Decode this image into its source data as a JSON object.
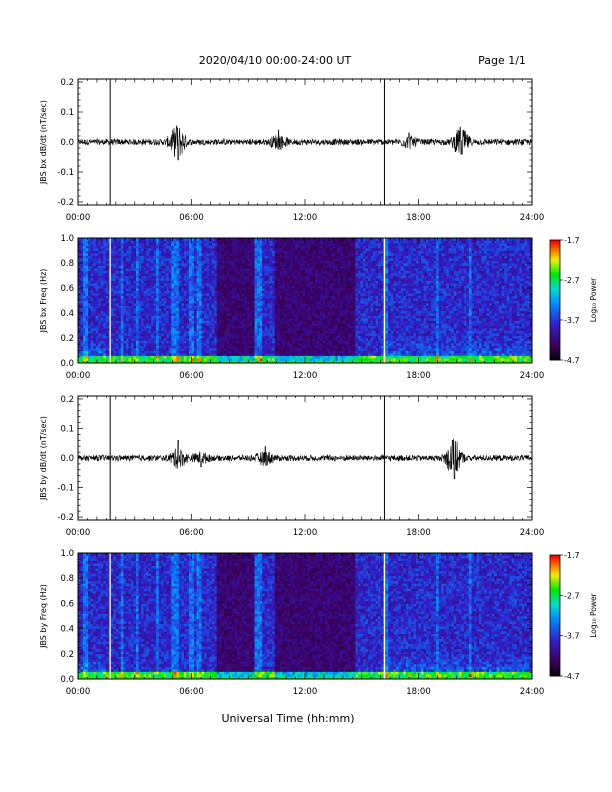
{
  "header": {
    "title": "2020/04/10  00:00-24:00 UT",
    "page": "Page 1/1"
  },
  "xlabel": "Universal Time (hh:mm)",
  "chart_data": [
    {
      "type": "line",
      "ylabel": "JBS bx dB/dt (nT/sec)",
      "xlim": [
        0,
        24
      ],
      "ylim": [
        -0.21,
        0.21
      ],
      "yticks": [
        "-0.2",
        "-0.1",
        "0.0",
        "0.1",
        "0.2"
      ],
      "xticks": [
        "00:00",
        "06:00",
        "12:00",
        "18:00",
        "24:00"
      ],
      "baseline": 0.0,
      "markers_hours": [
        1.7,
        16.2
      ],
      "bursts": [
        {
          "hour": 5.2,
          "peak": 0.05
        },
        {
          "hour": 5.3,
          "peak": -0.06
        },
        {
          "hour": 10.6,
          "peak": 0.04
        },
        {
          "hour": 17.5,
          "peak": 0.03
        },
        {
          "hour": 20.2,
          "peak": 0.05
        },
        {
          "hour": 20.3,
          "peak": -0.04
        }
      ]
    },
    {
      "type": "heatmap",
      "ylabel": "JBS bx Freq (Hz)",
      "xlim": [
        0,
        24
      ],
      "ylim": [
        0,
        1.0
      ],
      "yticks": [
        "0.0",
        "0.2",
        "0.4",
        "0.6",
        "0.8",
        "1.0"
      ],
      "xticks": [
        "00:00",
        "06:00",
        "12:00",
        "18:00",
        "24:00"
      ],
      "colorbar": {
        "label": "Log₁₀ Power",
        "ticks": [
          "-1.7",
          "-2.7",
          "-3.7",
          "-4.7"
        ],
        "range": [
          -4.7,
          -1.7
        ]
      },
      "gap_lines_hours": [
        1.7,
        16.2
      ]
    },
    {
      "type": "line",
      "ylabel": "JBS by dB/dt (nT/sec)",
      "xlim": [
        0,
        24
      ],
      "ylim": [
        -0.21,
        0.21
      ],
      "yticks": [
        "-0.2",
        "-0.1",
        "0.0",
        "0.1",
        "0.2"
      ],
      "xticks": [
        "00:00",
        "06:00",
        "12:00",
        "18:00",
        "24:00"
      ],
      "baseline": 0.0,
      "markers_hours": [
        1.7,
        16.2
      ],
      "bursts": [
        {
          "hour": 5.3,
          "peak": 0.06
        },
        {
          "hour": 6.5,
          "peak": -0.03
        },
        {
          "hour": 9.9,
          "peak": 0.04
        },
        {
          "hour": 19.8,
          "peak": 0.06
        },
        {
          "hour": 19.9,
          "peak": -0.07
        }
      ]
    },
    {
      "type": "heatmap",
      "ylabel": "JBS by Freq (Hz)",
      "xlim": [
        0,
        24
      ],
      "ylim": [
        0,
        1.0
      ],
      "yticks": [
        "0.0",
        "0.2",
        "0.4",
        "0.6",
        "0.8",
        "1.0"
      ],
      "xticks": [
        "00:00",
        "06:00",
        "12:00",
        "18:00",
        "24:00"
      ],
      "colorbar": {
        "label": "Log₁₀ Power",
        "ticks": [
          "-1.7",
          "-2.7",
          "-3.7",
          "-4.7"
        ],
        "range": [
          -4.7,
          -1.7
        ]
      },
      "gap_lines_hours": [
        1.7,
        16.2
      ]
    }
  ],
  "colors": {
    "axis": "#000000",
    "trace": "#000000",
    "gap": "#ffffff"
  }
}
